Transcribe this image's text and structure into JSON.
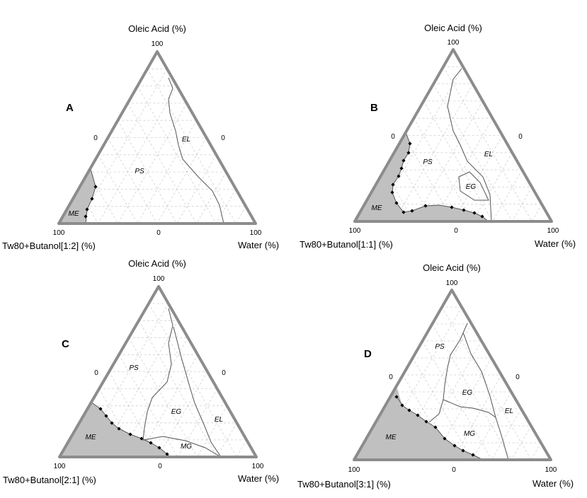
{
  "diagrams": [
    {
      "letter": "A",
      "top_label": "Oleic Acid  (%)",
      "left_label": "Tw80+Butanol[1:2]  (%)",
      "right_label": "Water  (%)",
      "apex_tick": "100",
      "left_mid_tick": "0",
      "right_mid_tick": "0",
      "left_corner_tick": "100",
      "bottom_mid_tick": "0",
      "right_corner_tick": "100",
      "regions": [
        "PS",
        "EL",
        "ME"
      ]
    },
    {
      "letter": "B",
      "top_label": "Oleic Acid  (%)",
      "left_label": "Tw80+Butanol[1:1]  (%)",
      "right_label": "Water  (%)",
      "apex_tick": "100",
      "left_mid_tick": "0",
      "right_mid_tick": "0",
      "left_corner_tick": "100",
      "bottom_mid_tick": "0",
      "right_corner_tick": "100",
      "regions": [
        "PS",
        "EL",
        "EG",
        "ME"
      ]
    },
    {
      "letter": "C",
      "top_label": "Oleic Acid  (%)",
      "left_label": "Tw80+Butanol[2:1]  (%)",
      "right_label": "Water  (%)",
      "apex_tick": "100",
      "left_mid_tick": "0",
      "right_mid_tick": "0",
      "left_corner_tick": "100",
      "bottom_mid_tick": "0",
      "right_corner_tick": "100",
      "regions": [
        "PS",
        "EG",
        "EL",
        "ME",
        "MG"
      ]
    },
    {
      "letter": "D",
      "top_label": "Oleic Acid  (%)",
      "left_label": "Tw80+Butanol[3:1]  (%)",
      "right_label": "Water  (%)",
      "apex_tick": "100",
      "left_mid_tick": "0",
      "right_mid_tick": "0",
      "left_corner_tick": "100",
      "bottom_mid_tick": "0",
      "right_corner_tick": "100",
      "regions": [
        "PS",
        "EG",
        "EL",
        "ME",
        "MG"
      ]
    }
  ],
  "colors": {
    "frame": "#8c8c8c",
    "grid": "#d0d0d0",
    "me_fill": "#c0c0c0",
    "line": "#555555",
    "point": "#000000"
  }
}
